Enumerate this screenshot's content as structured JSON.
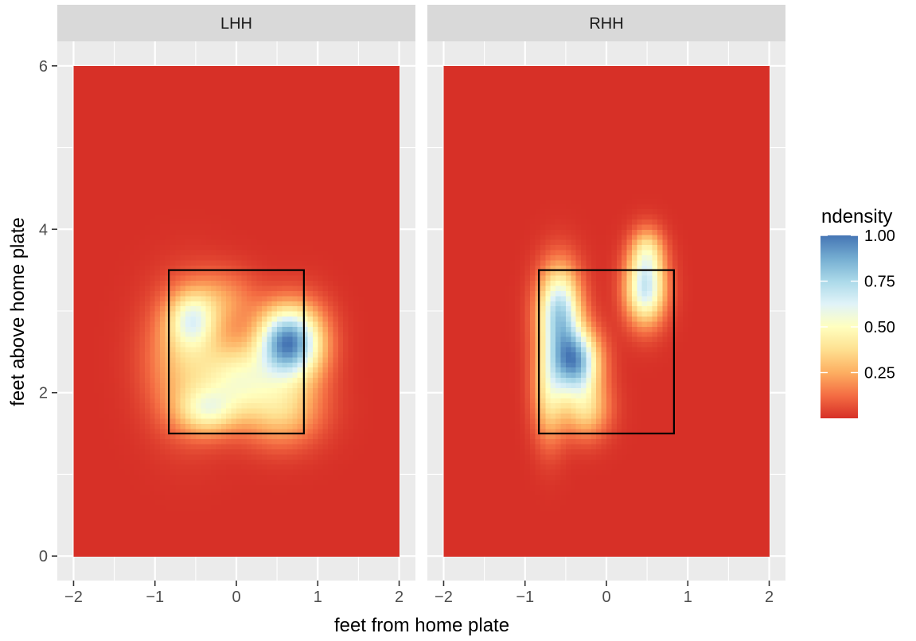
{
  "chart_data": {
    "type": "heatmap",
    "xlabel": "feet from home plate",
    "ylabel": "feet above home plate",
    "xlim": [
      -2.2,
      2.2
    ],
    "ylim": [
      -0.3,
      6.3
    ],
    "x_ticks": [
      -2,
      -1,
      0,
      1,
      2
    ],
    "x_tick_labels": [
      "−2",
      "−1",
      "0",
      "1",
      "2"
    ],
    "y_ticks": [
      0,
      2,
      4,
      6
    ],
    "y_tick_labels": [
      "0",
      "2",
      "4",
      "6"
    ],
    "density_extent": {
      "x": [
        -2,
        2
      ],
      "y": [
        0,
        6
      ]
    },
    "strike_zone": {
      "x": [
        -0.83,
        0.83
      ],
      "y": [
        1.5,
        3.5
      ]
    },
    "panel_background": "#ebebeb",
    "grid": true,
    "facets": [
      {
        "label": "LHH",
        "peaks": [
          {
            "x": 0.6,
            "y": 2.62,
            "sx": 0.24,
            "sy": 0.3,
            "amp": 0.72
          },
          {
            "x": -0.55,
            "y": 2.9,
            "sx": 0.2,
            "sy": 0.24,
            "amp": 0.32
          },
          {
            "x": -0.35,
            "y": 1.78,
            "sx": 0.26,
            "sy": 0.2,
            "amp": 0.3
          },
          {
            "x": 0.05,
            "y": 2.2,
            "sx": 0.3,
            "sy": 0.3,
            "amp": 0.33
          },
          {
            "x": 0.55,
            "y": 1.8,
            "sx": 0.34,
            "sy": 0.3,
            "amp": 0.28
          },
          {
            "x": -0.6,
            "y": 2.4,
            "sx": 0.34,
            "sy": 0.55,
            "amp": 0.26
          },
          {
            "x": -0.15,
            "y": 3.15,
            "sx": 0.3,
            "sy": 0.25,
            "amp": 0.15
          },
          {
            "x": 0.9,
            "y": 2.6,
            "sx": 0.22,
            "sy": 0.35,
            "amp": 0.2
          }
        ]
      },
      {
        "label": "RHH",
        "peaks": [
          {
            "x": -0.38,
            "y": 2.38,
            "sx": 0.2,
            "sy": 0.28,
            "amp": 0.62
          },
          {
            "x": -0.58,
            "y": 3.0,
            "sx": 0.18,
            "sy": 0.38,
            "amp": 0.55
          },
          {
            "x": -0.7,
            "y": 2.0,
            "sx": 0.14,
            "sy": 0.42,
            "amp": 0.28
          },
          {
            "x": -0.25,
            "y": 1.8,
            "sx": 0.2,
            "sy": 0.25,
            "amp": 0.25
          },
          {
            "x": 0.48,
            "y": 3.28,
            "sx": 0.17,
            "sy": 0.3,
            "amp": 0.5
          },
          {
            "x": 0.5,
            "y": 3.75,
            "sx": 0.14,
            "sy": 0.2,
            "amp": 0.22
          }
        ]
      }
    ],
    "legend": {
      "title": "ndensity",
      "position": "right",
      "breaks": [
        0.25,
        0.5,
        0.75,
        1.0
      ],
      "break_labels": [
        "0.25",
        "0.50",
        "0.75",
        "1.00"
      ],
      "range": [
        0.0,
        1.0
      ],
      "palette": [
        "#d73027",
        "#f46d43",
        "#fdae61",
        "#fee090",
        "#ffffbf",
        "#e0f3f8",
        "#abd9e9",
        "#74add1",
        "#4575b4"
      ]
    }
  }
}
